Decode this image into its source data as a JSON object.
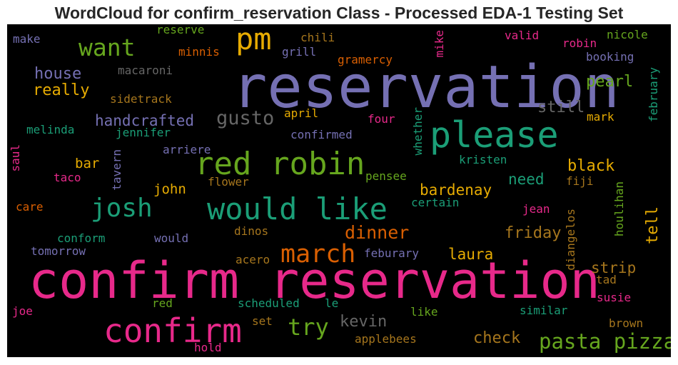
{
  "title": "WordCloud for confirm_reservation Class - Processed EDA-1 Testing Set",
  "colors": {
    "pink": "#e7298a",
    "green": "#1b9e77",
    "purple": "#7570b3",
    "lime": "#66a61e",
    "orange": "#d95f02",
    "gold": "#e6ab02",
    "brown": "#a6761d",
    "gray": "#666666"
  },
  "words": [
    {
      "text": "reservation",
      "color": "purple"
    },
    {
      "text": "confirm reservation",
      "color": "pink"
    },
    {
      "text": "please",
      "color": "green"
    },
    {
      "text": "red robin",
      "color": "lime"
    },
    {
      "text": "confirm",
      "color": "pink"
    },
    {
      "text": "would like",
      "color": "green"
    },
    {
      "text": "pm",
      "color": "gold"
    },
    {
      "text": "josh",
      "color": "green"
    },
    {
      "text": "march",
      "color": "orange"
    },
    {
      "text": "want",
      "color": "lime"
    },
    {
      "text": "try",
      "color": "lime"
    },
    {
      "text": "pasta pizza",
      "color": "lime"
    },
    {
      "text": "gusto",
      "color": "gray"
    },
    {
      "text": "dinner",
      "color": "orange"
    },
    {
      "text": "house",
      "color": "purple"
    },
    {
      "text": "really",
      "color": "gold"
    },
    {
      "text": "handcrafted",
      "color": "purple"
    },
    {
      "text": "still",
      "color": "gray"
    },
    {
      "text": "pearl",
      "color": "lime"
    },
    {
      "text": "black",
      "color": "gold"
    },
    {
      "text": "bardenay",
      "color": "gold"
    },
    {
      "text": "friday",
      "color": "brown"
    },
    {
      "text": "laura",
      "color": "gold"
    },
    {
      "text": "kevin",
      "color": "gray"
    },
    {
      "text": "check",
      "color": "brown"
    },
    {
      "text": "strip",
      "color": "brown"
    },
    {
      "text": "tell",
      "color": "gold"
    },
    {
      "text": "john",
      "color": "gold"
    },
    {
      "text": "need",
      "color": "green"
    },
    {
      "text": "bar",
      "color": "gold"
    },
    {
      "text": "reserve",
      "color": "lime"
    },
    {
      "text": "make",
      "color": "purple"
    },
    {
      "text": "minnis",
      "color": "orange"
    },
    {
      "text": "chili",
      "color": "brown"
    },
    {
      "text": "grill",
      "color": "purple"
    },
    {
      "text": "gramercy",
      "color": "orange"
    },
    {
      "text": "mike",
      "color": "pink"
    },
    {
      "text": "valid",
      "color": "pink"
    },
    {
      "text": "nicole",
      "color": "lime"
    },
    {
      "text": "robin",
      "color": "pink"
    },
    {
      "text": "booking",
      "color": "purple"
    },
    {
      "text": "macaroni",
      "color": "gray"
    },
    {
      "text": "sidetrack",
      "color": "brown"
    },
    {
      "text": "february",
      "color": "green"
    },
    {
      "text": "april",
      "color": "gold"
    },
    {
      "text": "four",
      "color": "pink"
    },
    {
      "text": "mark",
      "color": "gold"
    },
    {
      "text": "melinda",
      "color": "green"
    },
    {
      "text": "jennifer",
      "color": "green"
    },
    {
      "text": "confirmed",
      "color": "purple"
    },
    {
      "text": "whether",
      "color": "green"
    },
    {
      "text": "arriere",
      "color": "purple"
    },
    {
      "text": "saul",
      "color": "pink"
    },
    {
      "text": "tavern",
      "color": "purple"
    },
    {
      "text": "kristen",
      "color": "green"
    },
    {
      "text": "taco",
      "color": "pink"
    },
    {
      "text": "pensee",
      "color": "lime"
    },
    {
      "text": "flower",
      "color": "brown"
    },
    {
      "text": "fiji",
      "color": "brown"
    },
    {
      "text": "houlihan",
      "color": "lime"
    },
    {
      "text": "care",
      "color": "orange"
    },
    {
      "text": "certain",
      "color": "green"
    },
    {
      "text": "jean",
      "color": "pink"
    },
    {
      "text": "diangelos",
      "color": "brown"
    },
    {
      "text": "conform",
      "color": "green"
    },
    {
      "text": "would",
      "color": "purple"
    },
    {
      "text": "dinos",
      "color": "brown"
    },
    {
      "text": "tomorrow",
      "color": "purple"
    },
    {
      "text": "feburary",
      "color": "purple"
    },
    {
      "text": "acero",
      "color": "brown"
    },
    {
      "text": "tad",
      "color": "brown"
    },
    {
      "text": "susie",
      "color": "pink"
    },
    {
      "text": "joe",
      "color": "pink"
    },
    {
      "text": "red",
      "color": "lime"
    },
    {
      "text": "scheduled",
      "color": "green"
    },
    {
      "text": "le",
      "color": "green"
    },
    {
      "text": "like",
      "color": "lime"
    },
    {
      "text": "similar",
      "color": "green"
    },
    {
      "text": "set",
      "color": "brown"
    },
    {
      "text": "brown",
      "color": "brown"
    },
    {
      "text": "hold",
      "color": "pink"
    },
    {
      "text": "applebees",
      "color": "brown"
    }
  ]
}
